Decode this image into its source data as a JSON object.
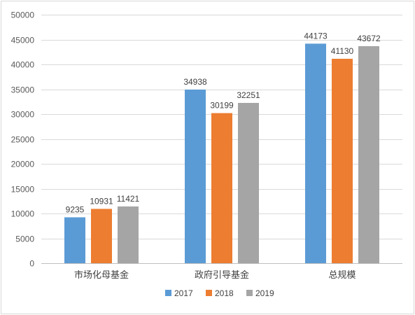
{
  "chart_data": {
    "type": "bar",
    "categories": [
      "市场化母基金",
      "政府引导基金",
      "总规模"
    ],
    "series": [
      {
        "name": "2017",
        "color": "#5b9bd5",
        "values": [
          9235,
          34938,
          44173
        ]
      },
      {
        "name": "2018",
        "color": "#ed7d31",
        "values": [
          10931,
          30199,
          41130
        ]
      },
      {
        "name": "2019",
        "color": "#a5a5a5",
        "values": [
          11421,
          32251,
          43672
        ]
      }
    ],
    "ylim": [
      0,
      50000
    ],
    "ytick_step": 5000,
    "grid": true,
    "legend": "bottom-center",
    "data_labels": true
  }
}
